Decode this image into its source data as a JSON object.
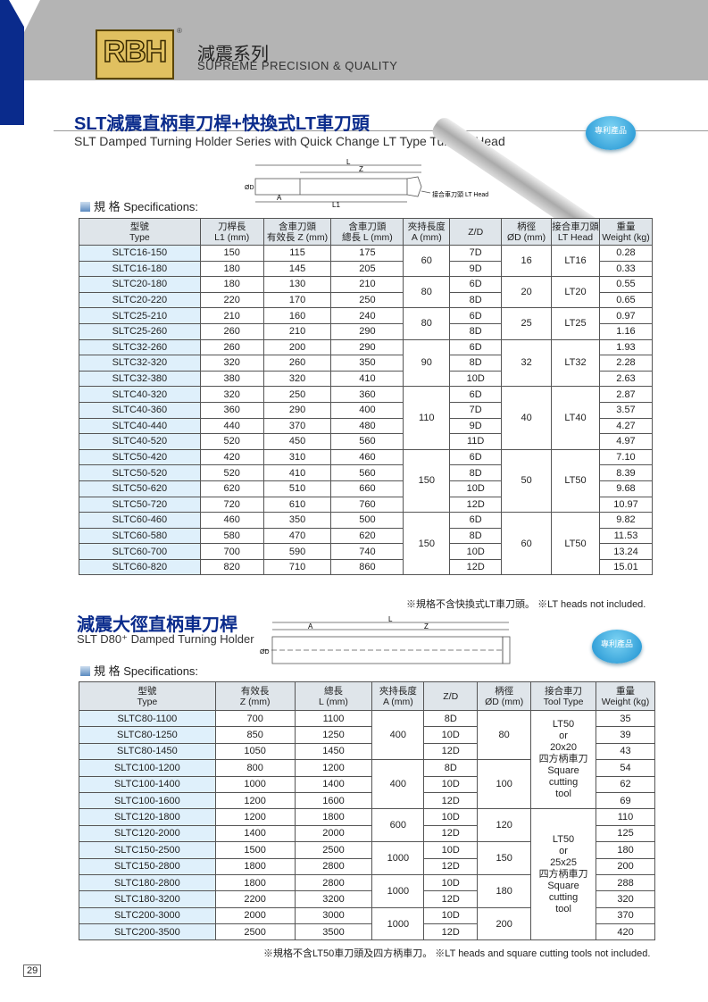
{
  "header": {
    "logo": "RBH",
    "registered": "®",
    "title_cn": "減震系列",
    "tagline": "SUPREME PRECISION & QUALITY"
  },
  "section1": {
    "title": "SLT減震直柄車刀桿+快換式LT車刀頭",
    "subtitle": "SLT Damped Turning Holder Series with Quick Change LT Type Turning Head",
    "badge": "專利產品",
    "diagram": {
      "L": "L",
      "Z": "Z",
      "A": "A",
      "L1": "L1",
      "OD": "ØD",
      "head_label": "接合車刀頭 LT Head"
    },
    "spec_label": "規 格 Specifications:",
    "columns": [
      [
        "型號",
        "Type"
      ],
      [
        "刀桿長",
        "L1 (mm)"
      ],
      [
        "含車刀頭",
        "有效長 Z (mm)"
      ],
      [
        "含車刀頭",
        "總長 L (mm)"
      ],
      [
        "夾持長度",
        "A (mm)"
      ],
      [
        "Z/D",
        ""
      ],
      [
        "柄徑",
        "ØD (mm)"
      ],
      [
        "接合車刀頭",
        "LT Head"
      ],
      [
        "重量",
        "Weight (kg)"
      ]
    ],
    "groups": [
      {
        "A": "60",
        "OD": "16",
        "head": "LT16",
        "rows": [
          [
            "SLTC16-150",
            "150",
            "115",
            "175",
            "7D",
            "0.28"
          ],
          [
            "SLTC16-180",
            "180",
            "145",
            "205",
            "9D",
            "0.33"
          ]
        ]
      },
      {
        "A": "80",
        "OD": "20",
        "head": "LT20",
        "rows": [
          [
            "SLTC20-180",
            "180",
            "130",
            "210",
            "6D",
            "0.55"
          ],
          [
            "SLTC20-220",
            "220",
            "170",
            "250",
            "8D",
            "0.65"
          ]
        ]
      },
      {
        "A": "80",
        "OD": "25",
        "head": "LT25",
        "rows": [
          [
            "SLTC25-210",
            "210",
            "160",
            "240",
            "6D",
            "0.97"
          ],
          [
            "SLTC25-260",
            "260",
            "210",
            "290",
            "8D",
            "1.16"
          ]
        ]
      },
      {
        "A": "90",
        "OD": "32",
        "head": "LT32",
        "rows": [
          [
            "SLTC32-260",
            "260",
            "200",
            "290",
            "6D",
            "1.93"
          ],
          [
            "SLTC32-320",
            "320",
            "260",
            "350",
            "8D",
            "2.28"
          ],
          [
            "SLTC32-380",
            "380",
            "320",
            "410",
            "10D",
            "2.63"
          ]
        ]
      },
      {
        "A": "110",
        "OD": "40",
        "head": "LT40",
        "rows": [
          [
            "SLTC40-320",
            "320",
            "250",
            "360",
            "6D",
            "2.87"
          ],
          [
            "SLTC40-360",
            "360",
            "290",
            "400",
            "7D",
            "3.57"
          ],
          [
            "SLTC40-440",
            "440",
            "370",
            "480",
            "9D",
            "4.27"
          ],
          [
            "SLTC40-520",
            "520",
            "450",
            "560",
            "11D",
            "4.97"
          ]
        ]
      },
      {
        "A": "150",
        "OD": "50",
        "head": "LT50",
        "rows": [
          [
            "SLTC50-420",
            "420",
            "310",
            "460",
            "6D",
            "7.10"
          ],
          [
            "SLTC50-520",
            "520",
            "410",
            "560",
            "8D",
            "8.39"
          ],
          [
            "SLTC50-620",
            "620",
            "510",
            "660",
            "10D",
            "9.68"
          ],
          [
            "SLTC50-720",
            "720",
            "610",
            "760",
            "12D",
            "10.97"
          ]
        ]
      },
      {
        "A": "150",
        "OD": "60",
        "head": "LT50",
        "rows": [
          [
            "SLTC60-460",
            "460",
            "350",
            "500",
            "6D",
            "9.82"
          ],
          [
            "SLTC60-580",
            "580",
            "470",
            "620",
            "8D",
            "11.53"
          ],
          [
            "SLTC60-700",
            "700",
            "590",
            "740",
            "10D",
            "13.24"
          ],
          [
            "SLTC60-820",
            "820",
            "710",
            "860",
            "12D",
            "15.01"
          ]
        ]
      }
    ],
    "note": "※規格不含快換式LT車刀頭。  ※LT heads not included."
  },
  "section2": {
    "title": "減震大徑直柄車刀桿",
    "subtitle": "SLT D80⁺ Damped Turning Holder",
    "badge": "專利產品",
    "diagram": {
      "L": "L",
      "Z": "Z",
      "A": "A",
      "OD": "ØD"
    },
    "spec_label": "規 格 Specifications:",
    "columns": [
      [
        "型號",
        "Type"
      ],
      [
        "有效長",
        "Z (mm)"
      ],
      [
        "總長",
        "L (mm)"
      ],
      [
        "夾持長度",
        "A (mm)"
      ],
      [
        "Z/D",
        ""
      ],
      [
        "柄徑",
        "ØD (mm)"
      ],
      [
        "接合車刀",
        "Tool Type"
      ],
      [
        "重量",
        "Weight (kg)"
      ]
    ],
    "tool_groups": [
      {
        "span": 6,
        "text": "LT50\nor\n20x20\n四方柄車刀\nSquare\ncutting\ntool"
      },
      {
        "span": 8,
        "text": "LT50\nor\n25x25\n四方柄車刀\nSquare\ncutting\ntool"
      }
    ],
    "groups": [
      {
        "A": "400",
        "OD": "80",
        "rows": [
          [
            "SLTC80-1100",
            "700",
            "1100",
            "8D",
            "35"
          ],
          [
            "SLTC80-1250",
            "850",
            "1250",
            "10D",
            "39"
          ],
          [
            "SLTC80-1450",
            "1050",
            "1450",
            "12D",
            "43"
          ]
        ]
      },
      {
        "A": "400",
        "OD": "100",
        "rows": [
          [
            "SLTC100-1200",
            "800",
            "1200",
            "8D",
            "54"
          ],
          [
            "SLTC100-1400",
            "1000",
            "1400",
            "10D",
            "62"
          ],
          [
            "SLTC100-1600",
            "1200",
            "1600",
            "12D",
            "69"
          ]
        ]
      },
      {
        "A": "600",
        "OD": "120",
        "rows": [
          [
            "SLTC120-1800",
            "1200",
            "1800",
            "10D",
            "110"
          ],
          [
            "SLTC120-2000",
            "1400",
            "2000",
            "12D",
            "125"
          ]
        ]
      },
      {
        "A": "1000",
        "OD": "150",
        "rows": [
          [
            "SLTC150-2500",
            "1500",
            "2500",
            "10D",
            "180"
          ],
          [
            "SLTC150-2800",
            "1800",
            "2800",
            "12D",
            "200"
          ]
        ]
      },
      {
        "A": "1000",
        "OD": "180",
        "rows": [
          [
            "SLTC180-2800",
            "1800",
            "2800",
            "10D",
            "288"
          ],
          [
            "SLTC180-3200",
            "2200",
            "3200",
            "12D",
            "320"
          ]
        ]
      },
      {
        "A": "1000",
        "OD": "200",
        "rows": [
          [
            "SLTC200-3000",
            "2000",
            "3000",
            "10D",
            "370"
          ],
          [
            "SLTC200-3500",
            "2500",
            "3500",
            "12D",
            "420"
          ]
        ]
      }
    ],
    "note": "※規格不含LT50車刀頭及四方柄車刀。  ※LT heads and square cutting tools not included."
  },
  "page_number": "29"
}
